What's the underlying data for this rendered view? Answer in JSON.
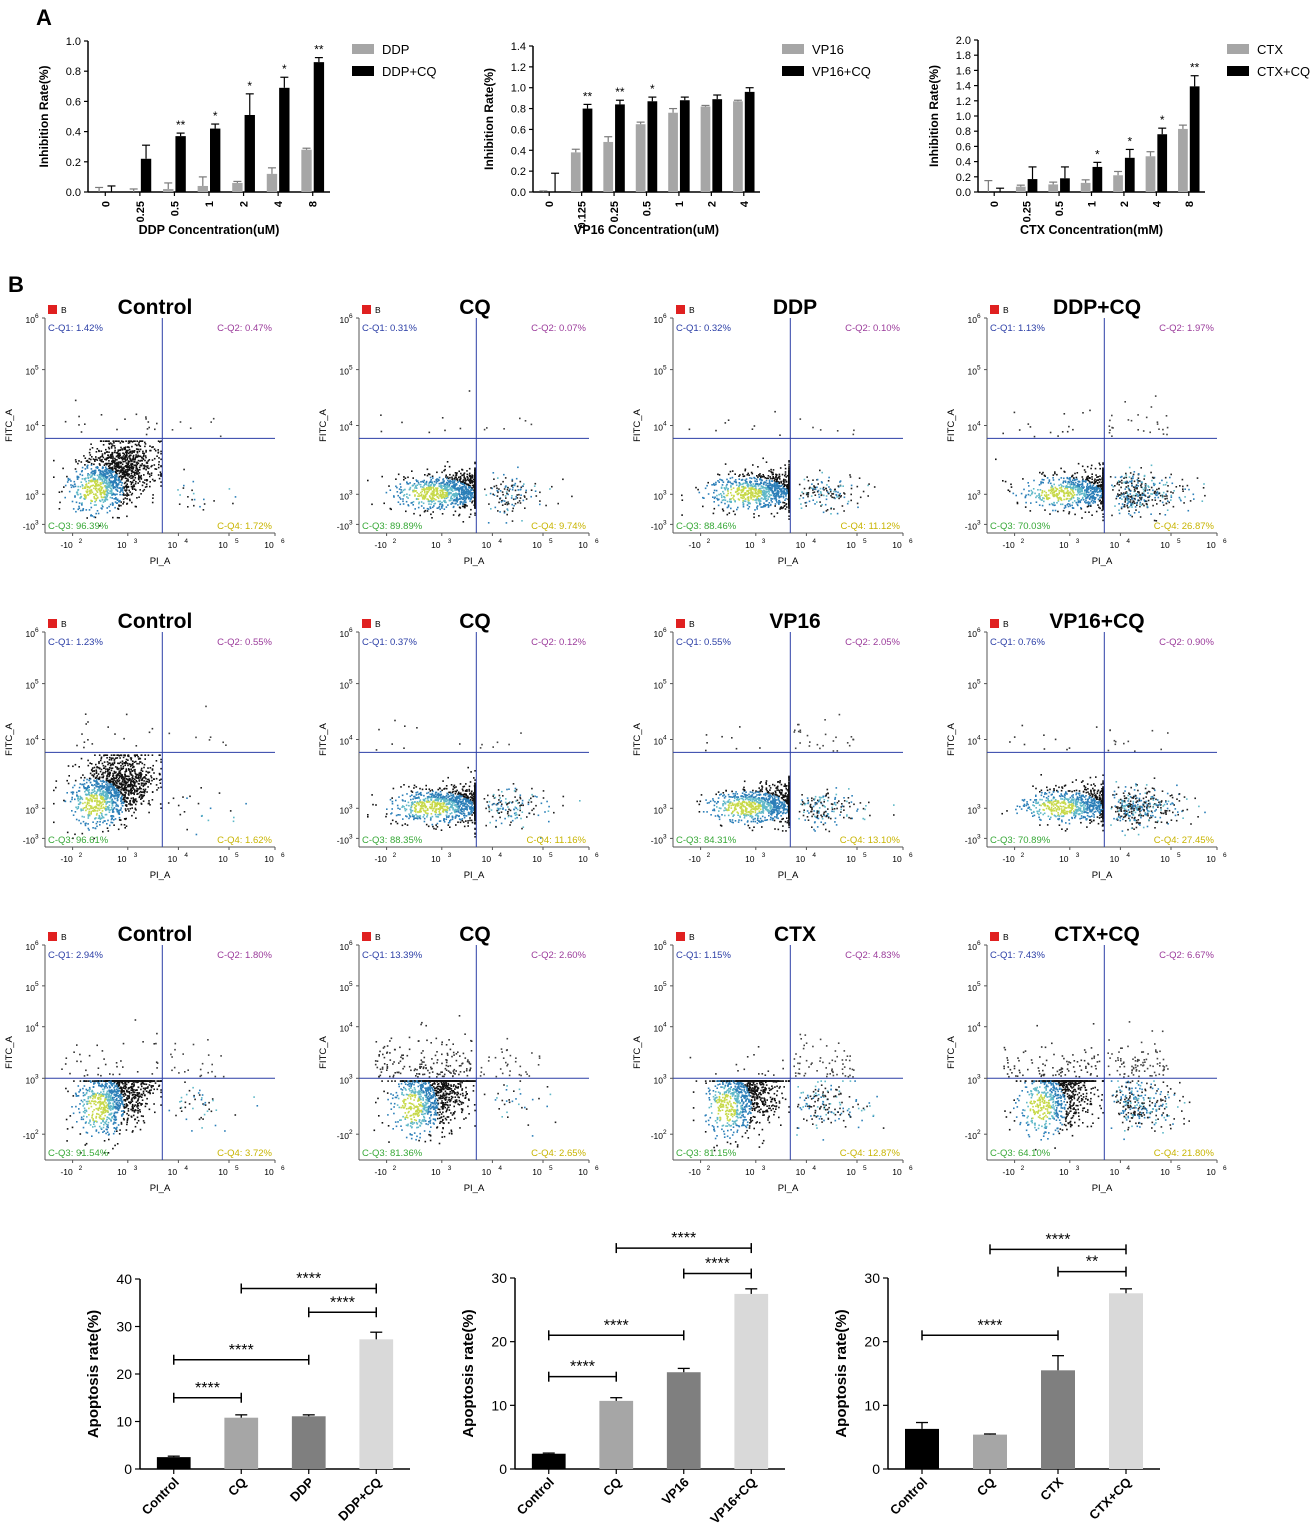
{
  "panel_labels": {
    "a": "A",
    "b": "B"
  },
  "chart_data": [
    {
      "id": "inhib_ddp",
      "type": "bar",
      "title": "",
      "categories": [
        "0",
        "0.25",
        "0.5",
        "1",
        "2",
        "4",
        "8"
      ],
      "series": [
        {
          "name": "DDP",
          "values": [
            0.0,
            0.0,
            0.02,
            0.04,
            0.06,
            0.12,
            0.28
          ],
          "errors": [
            0.03,
            0.02,
            0.04,
            0.06,
            0.01,
            0.04,
            0.01
          ]
        },
        {
          "name": "DDP+CQ",
          "values": [
            0.0,
            0.22,
            0.37,
            0.42,
            0.51,
            0.69,
            0.86
          ],
          "errors": [
            0.04,
            0.09,
            0.02,
            0.03,
            0.14,
            0.07,
            0.03
          ]
        }
      ],
      "sig": [
        "",
        "",
        "**",
        "*",
        "*",
        "*",
        "**"
      ],
      "xlabel": "DDP Concentration(uM)",
      "ylabel": "Inhibition Rate(%)",
      "ylim": [
        0,
        1.0
      ],
      "yticks": [
        "0.0",
        "0.2",
        "0.4",
        "0.6",
        "0.8",
        "1.0"
      ],
      "ystep": 0.2
    },
    {
      "id": "inhib_vp16",
      "type": "bar",
      "title": "",
      "categories": [
        "0",
        "0.125",
        "0.25",
        "0.5",
        "1",
        "2",
        "4"
      ],
      "series": [
        {
          "name": "VP16",
          "values": [
            0.0,
            0.38,
            0.48,
            0.65,
            0.76,
            0.82,
            0.87
          ],
          "errors": [
            0.01,
            0.03,
            0.05,
            0.02,
            0.04,
            0.01,
            0.01
          ]
        },
        {
          "name": "VP16+CQ",
          "values": [
            0.0,
            0.8,
            0.84,
            0.87,
            0.88,
            0.89,
            0.96
          ],
          "errors": [
            0.18,
            0.04,
            0.04,
            0.04,
            0.03,
            0.04,
            0.04
          ]
        }
      ],
      "sig": [
        "",
        "**",
        "**",
        "*",
        "",
        "",
        ""
      ],
      "xlabel": "VP16 Concentration(uM)",
      "ylabel": "Inhibition Rate(%)",
      "ylim": [
        0,
        1.4
      ],
      "yticks": [
        "0.0",
        "0.2",
        "0.4",
        "0.6",
        "0.8",
        "1.0",
        "1.2",
        "1.4"
      ],
      "ystep": 0.2
    },
    {
      "id": "inhib_ctx",
      "type": "bar",
      "title": "",
      "categories": [
        "0",
        "0.25",
        "0.5",
        "1",
        "2",
        "4",
        "8"
      ],
      "series": [
        {
          "name": "CTX",
          "values": [
            0.0,
            0.07,
            0.1,
            0.12,
            0.22,
            0.47,
            0.83
          ],
          "errors": [
            0.15,
            0.02,
            0.03,
            0.04,
            0.05,
            0.06,
            0.05
          ]
        },
        {
          "name": "CTX+CQ",
          "values": [
            0.0,
            0.17,
            0.18,
            0.33,
            0.45,
            0.76,
            1.39
          ],
          "errors": [
            0.05,
            0.16,
            0.15,
            0.06,
            0.11,
            0.08,
            0.14
          ]
        }
      ],
      "sig": [
        "",
        "",
        "",
        "*",
        "*",
        "*",
        "**"
      ],
      "xlabel": "CTX Concentration(mM)",
      "ylabel": "Inhibition Rate(%)",
      "ylim": [
        0,
        2.0
      ],
      "yticks": [
        "0.0",
        "0.2",
        "0.4",
        "0.6",
        "0.8",
        "1.0",
        "1.2",
        "1.4",
        "1.6",
        "1.8",
        "2.0"
      ],
      "ystep": 0.2
    },
    {
      "id": "apop_ddp",
      "type": "bar",
      "categories": [
        "Control",
        "CQ",
        "DDP",
        "DDP+CQ"
      ],
      "values": [
        2.5,
        10.8,
        11.1,
        27.3
      ],
      "errors": [
        0.2,
        0.6,
        0.3,
        1.5
      ],
      "colors": [
        "#000000",
        "#a6a6a6",
        "#7f7f7f",
        "#d9d9d9"
      ],
      "ylabel": "Apoptosis rate(%)",
      "ylim": [
        0,
        40
      ],
      "yticks": [
        "0",
        "10",
        "20",
        "30",
        "40"
      ],
      "ystep": 10,
      "brackets": [
        {
          "from": 0,
          "to": 1,
          "y": 15,
          "label": "****"
        },
        {
          "from": 0,
          "to": 2,
          "y": 23,
          "label": "****"
        },
        {
          "from": 2,
          "to": 3,
          "y": 33,
          "label": "****"
        },
        {
          "from": 1,
          "to": 3,
          "y": 38,
          "label": "****"
        }
      ]
    },
    {
      "id": "apop_vp16",
      "type": "bar",
      "categories": [
        "Control",
        "CQ",
        "VP16",
        "VP16+CQ"
      ],
      "values": [
        2.4,
        10.7,
        15.2,
        27.5
      ],
      "errors": [
        0.1,
        0.5,
        0.6,
        0.8
      ],
      "colors": [
        "#000000",
        "#a6a6a6",
        "#7f7f7f",
        "#d9d9d9"
      ],
      "ylabel": "Apoptosis rate(%)",
      "ylim": [
        0,
        30
      ],
      "yticks": [
        "0",
        "10",
        "20",
        "30"
      ],
      "ystep": 10,
      "brackets": [
        {
          "from": 0,
          "to": 1,
          "y": 14.5,
          "label": "****"
        },
        {
          "from": 0,
          "to": 2,
          "y": 21,
          "label": "****"
        },
        {
          "from": 2,
          "to": 3,
          "y": 30.7,
          "label": "****"
        },
        {
          "from": 1,
          "to": 3,
          "y": 34.7,
          "label": "****"
        }
      ]
    },
    {
      "id": "apop_ctx",
      "type": "bar",
      "categories": [
        "Control",
        "CQ",
        "CTX",
        "CTX+CQ"
      ],
      "values": [
        6.3,
        5.4,
        15.5,
        27.6
      ],
      "errors": [
        1.0,
        0.1,
        2.3,
        0.7
      ],
      "colors": [
        "#000000",
        "#a6a6a6",
        "#7f7f7f",
        "#d9d9d9"
      ],
      "ylabel": "Apoptosis rate(%)",
      "ylim": [
        0,
        30
      ],
      "yticks": [
        "0",
        "10",
        "20",
        "30"
      ],
      "ystep": 10,
      "brackets": [
        {
          "from": 0,
          "to": 2,
          "y": 21,
          "label": "****"
        },
        {
          "from": 2,
          "to": 3,
          "y": 31,
          "label": "**"
        },
        {
          "from": 1,
          "to": 3,
          "y": 34.5,
          "label": "****"
        }
      ]
    }
  ],
  "flow": {
    "legend_label": "B",
    "x_axis_label": "PI_A",
    "y_axis_label": "FITC_A",
    "rows": [
      [
        {
          "title": "Control",
          "q1": "C-Q1: 1.42%",
          "q2": "C-Q2: 0.47%",
          "q3": "C-Q3: 96.39%",
          "q4": "C-Q4: 1.72%",
          "pct": [
            1.42,
            0.47,
            96.39,
            1.72
          ]
        },
        {
          "title": "CQ",
          "q1": "C-Q1: 0.31%",
          "q2": "C-Q2: 0.07%",
          "q3": "C-Q3: 89.89%",
          "q4": "C-Q4: 9.74%",
          "pct": [
            0.31,
            0.07,
            89.89,
            9.74
          ]
        },
        {
          "title": "DDP",
          "q1": "C-Q1: 0.32%",
          "q2": "C-Q2: 0.10%",
          "q3": "C-Q3: 88.46%",
          "q4": "C-Q4: 11.12%",
          "pct": [
            0.32,
            0.1,
            88.46,
            11.12
          ]
        },
        {
          "title": "DDP+CQ",
          "q1": "C-Q1: 1.13%",
          "q2": "C-Q2: 1.97%",
          "q3": "C-Q3: 70.03%",
          "q4": "C-Q4: 26.87%",
          "pct": [
            1.13,
            1.97,
            70.03,
            26.87
          ]
        }
      ],
      [
        {
          "title": "Control",
          "q1": "C-Q1: 1.23%",
          "q2": "C-Q2: 0.55%",
          "q3": "C-Q3: 96.61%",
          "q4": "C-Q4: 1.62%",
          "pct": [
            1.23,
            0.55,
            96.61,
            1.62
          ]
        },
        {
          "title": "CQ",
          "q1": "C-Q1: 0.37%",
          "q2": "C-Q2: 0.12%",
          "q3": "C-Q3: 88.35%",
          "q4": "C-Q4: 11.16%",
          "pct": [
            0.37,
            0.12,
            88.35,
            11.16
          ]
        },
        {
          "title": "VP16",
          "q1": "C-Q1: 0.55%",
          "q2": "C-Q2: 2.05%",
          "q3": "C-Q3: 84.31%",
          "q4": "C-Q4: 13.10%",
          "pct": [
            0.55,
            2.05,
            84.31,
            13.1
          ]
        },
        {
          "title": "VP16+CQ",
          "q1": "C-Q1: 0.76%",
          "q2": "C-Q2: 0.90%",
          "q3": "C-Q3: 70.89%",
          "q4": "C-Q4: 27.45%",
          "pct": [
            0.76,
            0.9,
            70.89,
            27.45
          ]
        }
      ],
      [
        {
          "title": "Control",
          "q1": "C-Q1: 2.94%",
          "q2": "C-Q2: 1.80%",
          "q3": "C-Q3: 91.54%",
          "q4": "C-Q4: 3.72%",
          "pct": [
            2.94,
            1.8,
            91.54,
            3.72
          ]
        },
        {
          "title": "CQ",
          "q1": "C-Q1: 13.39%",
          "q2": "C-Q2: 2.60%",
          "q3": "C-Q3: 81.36%",
          "q4": "C-Q4: 2.65%",
          "pct": [
            13.39,
            2.6,
            81.36,
            2.65
          ]
        },
        {
          "title": "CTX",
          "q1": "C-Q1: 1.15%",
          "q2": "C-Q2: 4.83%",
          "q3": "C-Q3: 81.15%",
          "q4": "C-Q4: 12.87%",
          "pct": [
            1.15,
            4.83,
            81.15,
            12.87
          ]
        },
        {
          "title": "CTX+CQ",
          "q1": "C-Q1: 7.43%",
          "q2": "C-Q2: 6.67%",
          "q3": "C-Q3: 64.10%",
          "q4": "C-Q4: 21.80%",
          "pct": [
            7.43,
            6.67,
            64.1,
            21.8
          ]
        }
      ]
    ],
    "x_ticks": [
      "-10",
      "10",
      "10",
      "10",
      "10"
    ],
    "x_tick_exps": [
      "2",
      "3",
      "4",
      "5",
      "6"
    ],
    "y_ticks_rows12": [
      "10",
      "10",
      "10",
      "10",
      "-10"
    ],
    "y_tick_exps_rows12": [
      "6",
      "5",
      "4",
      "3",
      "3"
    ],
    "y_ticks_row3": [
      "10",
      "10",
      "10",
      "10",
      "-10"
    ],
    "y_tick_exps_row3": [
      "6",
      "5",
      "4",
      "3",
      "2"
    ]
  },
  "colors": {
    "gray": "#a6a6a6",
    "black": "#000000",
    "gate": "#2b3ea6",
    "q1": "#2b3ea6",
    "q2": "#9b3b9b",
    "q3": "#37a837",
    "q4": "#c8b400",
    "legend": "#e02020"
  }
}
